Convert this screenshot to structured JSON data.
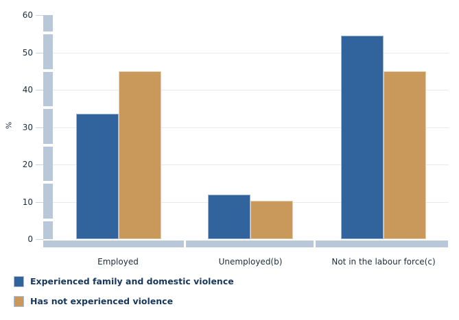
{
  "chart_data": {
    "type": "bar",
    "categories": [
      "Employed",
      "Unemployed(b)",
      "Not in the labour force(c)"
    ],
    "series": [
      {
        "name": "Experienced family and domestic violence",
        "color": "#31639c",
        "values": [
          33.6,
          12.0,
          54.5
        ]
      },
      {
        "name": "Has not experienced violence",
        "color": "#c9995c",
        "values": [
          45.0,
          10.3,
          45.0
        ]
      }
    ],
    "title": "",
    "xlabel": "",
    "ylabel": "%",
    "ylim": [
      0,
      60
    ],
    "yticks": [
      0,
      10,
      20,
      30,
      40,
      50,
      60
    ],
    "grid": "horizontal gridlines at 10,20,30,40,50",
    "legend_position": "bottom-left",
    "colors": {
      "axis_band": "#b9c8d9",
      "gridline": "#e7e9ea",
      "tick_text": "#1c2b39",
      "legend_text": "#17375d",
      "background": "#ffffff"
    }
  }
}
